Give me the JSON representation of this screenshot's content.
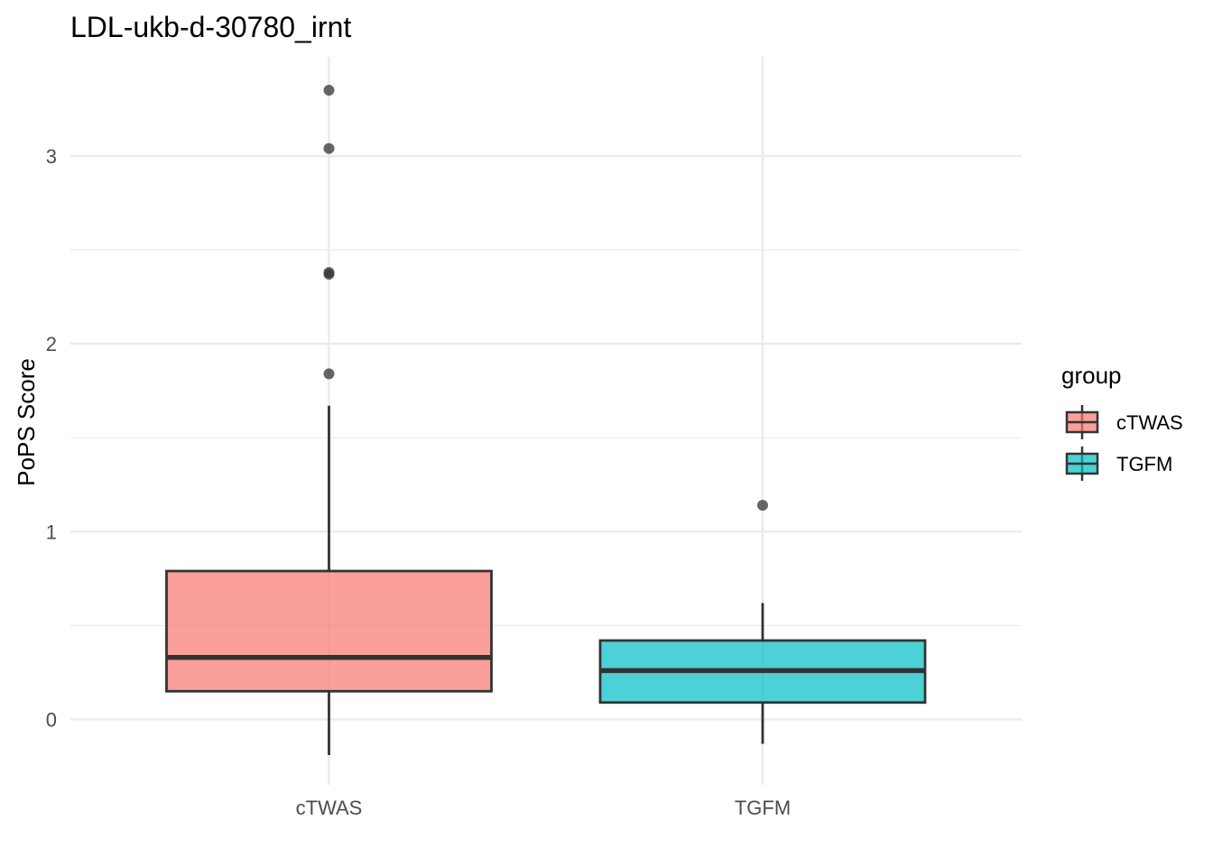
{
  "chart_data": {
    "type": "box",
    "title": "LDL-ukb-d-30780_irnt",
    "xlabel": "",
    "ylabel": "PoPS Score",
    "categories": [
      "cTWAS",
      "TGFM"
    ],
    "ylim": [
      -0.35,
      3.5
    ],
    "y_ticks": [
      0,
      1,
      2,
      3
    ],
    "grid": true,
    "legend": {
      "title": "group",
      "position": "right",
      "entries": [
        "cTWAS",
        "TGFM"
      ]
    },
    "colors": {
      "cTWAS": "#F8766D",
      "TGFM": "#00BFC4"
    },
    "series": [
      {
        "name": "cTWAS",
        "whisker_low": -0.19,
        "q1": 0.15,
        "median": 0.33,
        "q3": 0.79,
        "whisker_high": 1.67,
        "outliers": [
          1.84,
          2.37,
          2.38,
          3.04,
          3.35
        ]
      },
      {
        "name": "TGFM",
        "whisker_low": -0.13,
        "q1": 0.09,
        "median": 0.26,
        "q3": 0.42,
        "whisker_high": 0.62,
        "outliers": [
          1.14
        ]
      }
    ]
  }
}
